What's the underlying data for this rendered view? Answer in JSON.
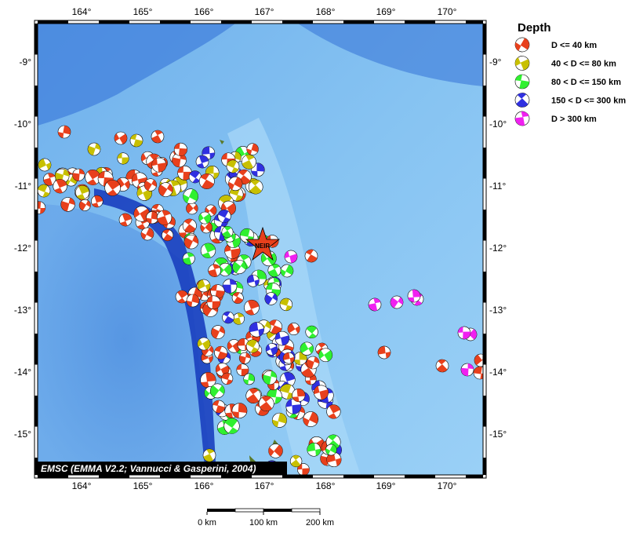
{
  "legend": {
    "title": "Depth",
    "items": [
      {
        "label": "D <= 40 km",
        "color": "#e8401c"
      },
      {
        "label": "40 < D <= 80 km",
        "color": "#c8c000"
      },
      {
        "label": "80 < D <= 150 km",
        "color": "#30f030"
      },
      {
        "label": "150 < D <= 300 km",
        "color": "#3030e0"
      },
      {
        "label": "D > 300 km",
        "color": "#f020f0"
      }
    ]
  },
  "axes": {
    "lon_labels": [
      "164°",
      "165°",
      "166°",
      "167°",
      "168°",
      "169°",
      "170°"
    ],
    "lat_labels": [
      "-9°",
      "-10°",
      "-11°",
      "-12°",
      "-13°",
      "-14°",
      "-15°"
    ]
  },
  "station": {
    "label": "NEIR",
    "color": "#e8401c"
  },
  "credit": "EMSC (EMMA V2.2; Vannucci & Gasperini, 2004)",
  "scalebar": {
    "labels": [
      "0 km",
      "100 km",
      "200 km"
    ]
  },
  "colors": {
    "ocean_deep": "#1a3fbf",
    "ocean_mid": "#5f9fe6",
    "ocean_light": "#8ec7f4",
    "island": "#5a7a2a"
  }
}
